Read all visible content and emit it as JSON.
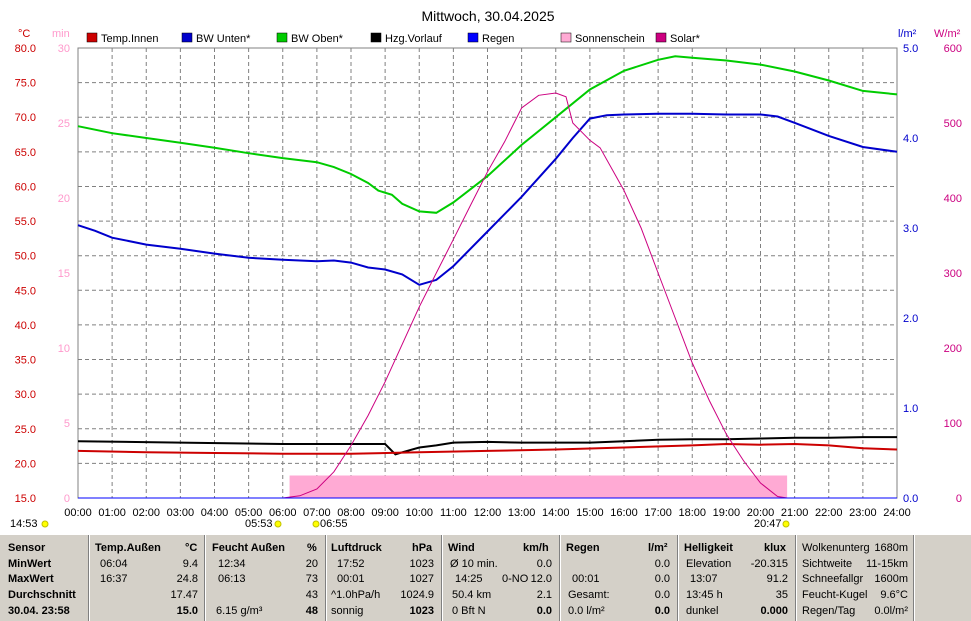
{
  "chart_data": {
    "type": "line",
    "title": "Mittwoch, 30.04.2025",
    "axes": {
      "left_temp": {
        "unit": "°C",
        "min": 15,
        "max": 80,
        "ticks": [
          "80.0",
          "75.0",
          "70.0",
          "65.0",
          "60.0",
          "55.0",
          "50.0",
          "45.0",
          "40.0",
          "35.0",
          "30.0",
          "25.0",
          "20.0",
          "15.0"
        ]
      },
      "left_min": {
        "unit": "min",
        "min": 0,
        "max": 30,
        "ticks": [
          "30",
          "25",
          "20",
          "15",
          "10",
          "5",
          "0"
        ]
      },
      "right_rain": {
        "unit": "l/m²",
        "min": 0,
        "max": 5,
        "ticks": [
          "5.0",
          "4.0",
          "3.0",
          "2.0",
          "1.0",
          "0.0"
        ]
      },
      "right_solar": {
        "unit": "W/m²",
        "min": 0,
        "max": 600,
        "ticks": [
          "600",
          "500",
          "400",
          "300",
          "200",
          "100",
          "0"
        ]
      }
    },
    "x_ticks": [
      "00:00",
      "01:00",
      "02:00",
      "03:00",
      "04:00",
      "05:00",
      "06:00",
      "07:00",
      "08:00",
      "09:00",
      "10:00",
      "11:00",
      "12:00",
      "13:00",
      "14:00",
      "15:00",
      "16:00",
      "17:00",
      "18:00",
      "19:00",
      "20:00",
      "21:00",
      "22:00",
      "23:00",
      "24:00"
    ],
    "grid": true,
    "legend": [
      {
        "label": "Temp.Innen",
        "color": "#cc0000"
      },
      {
        "label": "BW Unten*",
        "color": "#0000cc"
      },
      {
        "label": "BW Oben*",
        "color": "#00cc00"
      },
      {
        "label": "Hzg.Vorlauf",
        "color": "#000000"
      },
      {
        "label": "Regen",
        "color": "#0000ff"
      },
      {
        "label": "Sonnenschein",
        "color": "#ffaad4"
      },
      {
        "label": "Solar*",
        "color": "#cc0080"
      }
    ],
    "series": [
      {
        "name": "BW Oben*",
        "axis": "left_temp",
        "color": "#00cc00",
        "points": [
          [
            0,
            68.7
          ],
          [
            1,
            67.7
          ],
          [
            2,
            67.0
          ],
          [
            3,
            66.3
          ],
          [
            4,
            65.6
          ],
          [
            5,
            64.8
          ],
          [
            6,
            64.1
          ],
          [
            7,
            63.5
          ],
          [
            7.5,
            62.8
          ],
          [
            8,
            61.8
          ],
          [
            8.5,
            60.5
          ],
          [
            8.8,
            59.4
          ],
          [
            9.2,
            58.8
          ],
          [
            9.5,
            57.5
          ],
          [
            10,
            56.4
          ],
          [
            10.5,
            56.2
          ],
          [
            11,
            57.7
          ],
          [
            12,
            61.5
          ],
          [
            13,
            66.0
          ],
          [
            14,
            70.0
          ],
          [
            15,
            74.0
          ],
          [
            16,
            76.7
          ],
          [
            17,
            78.3
          ],
          [
            17.5,
            78.8
          ],
          [
            18,
            78.6
          ],
          [
            19,
            78.2
          ],
          [
            20,
            77.6
          ],
          [
            21,
            76.6
          ],
          [
            22,
            75.3
          ],
          [
            23,
            73.8
          ],
          [
            24,
            73.3
          ]
        ]
      },
      {
        "name": "BW Unten*",
        "axis": "left_temp",
        "color": "#0000cc",
        "points": [
          [
            0,
            54.4
          ],
          [
            0.5,
            53.6
          ],
          [
            1,
            52.6
          ],
          [
            2,
            51.6
          ],
          [
            3,
            51.0
          ],
          [
            4,
            50.3
          ],
          [
            5,
            49.7
          ],
          [
            6,
            49.4
          ],
          [
            7,
            49.2
          ],
          [
            7.5,
            49.3
          ],
          [
            8,
            49.0
          ],
          [
            8.5,
            48.3
          ],
          [
            9,
            48.0
          ],
          [
            9.5,
            47.3
          ],
          [
            10,
            45.8
          ],
          [
            10.5,
            46.5
          ],
          [
            11,
            48.5
          ],
          [
            12,
            53.5
          ],
          [
            13,
            58.5
          ],
          [
            14,
            64.0
          ],
          [
            14.5,
            67.0
          ],
          [
            15,
            69.8
          ],
          [
            15.5,
            70.3
          ],
          [
            16,
            70.4
          ],
          [
            17,
            70.5
          ],
          [
            18,
            70.5
          ],
          [
            19,
            70.4
          ],
          [
            20,
            70.4
          ],
          [
            20.5,
            70.1
          ],
          [
            21,
            69.2
          ],
          [
            22,
            67.3
          ],
          [
            23,
            65.7
          ],
          [
            24,
            65.0
          ]
        ]
      },
      {
        "name": "Hzg.Vorlauf",
        "axis": "left_temp",
        "color": "#000000",
        "points": [
          [
            0,
            23.2
          ],
          [
            3,
            23.0
          ],
          [
            6,
            22.8
          ],
          [
            9,
            22.8
          ],
          [
            9.3,
            21.3
          ],
          [
            9.5,
            21.6
          ],
          [
            10,
            22.3
          ],
          [
            10.5,
            22.6
          ],
          [
            11,
            23.0
          ],
          [
            12,
            23.1
          ],
          [
            13,
            23.0
          ],
          [
            14,
            23.0
          ],
          [
            15,
            23.0
          ],
          [
            16,
            23.2
          ],
          [
            17,
            23.4
          ],
          [
            18,
            23.5
          ],
          [
            19,
            23.5
          ],
          [
            20,
            23.6
          ],
          [
            21,
            23.7
          ],
          [
            22,
            23.7
          ],
          [
            23,
            23.8
          ],
          [
            24,
            23.8
          ]
        ]
      },
      {
        "name": "Temp.Innen",
        "axis": "left_temp",
        "color": "#cc0000",
        "points": [
          [
            0,
            21.8
          ],
          [
            2,
            21.6
          ],
          [
            4,
            21.5
          ],
          [
            6,
            21.4
          ],
          [
            8,
            21.4
          ],
          [
            10,
            21.6
          ],
          [
            12,
            21.8
          ],
          [
            14,
            22.0
          ],
          [
            16,
            22.3
          ],
          [
            18,
            22.6
          ],
          [
            19,
            22.8
          ],
          [
            20,
            22.7
          ],
          [
            21,
            22.8
          ],
          [
            22,
            22.6
          ],
          [
            23,
            22.2
          ],
          [
            24,
            22.0
          ]
        ]
      },
      {
        "name": "Solar*",
        "axis": "right_solar",
        "color": "#cc0080",
        "points": [
          [
            6.0,
            0
          ],
          [
            6.5,
            3
          ],
          [
            7.0,
            12
          ],
          [
            7.5,
            35
          ],
          [
            8,
            70
          ],
          [
            8.5,
            110
          ],
          [
            9,
            155
          ],
          [
            9.5,
            205
          ],
          [
            10,
            255
          ],
          [
            10.5,
            300
          ],
          [
            11,
            345
          ],
          [
            11.5,
            390
          ],
          [
            12,
            435
          ],
          [
            12.5,
            475
          ],
          [
            13,
            520
          ],
          [
            13.5,
            537
          ],
          [
            14,
            540
          ],
          [
            14.3,
            535
          ],
          [
            14.5,
            500
          ],
          [
            15,
            477
          ],
          [
            15.3,
            467
          ],
          [
            16,
            410
          ],
          [
            16.5,
            360
          ],
          [
            17,
            300
          ],
          [
            17.5,
            240
          ],
          [
            18,
            180
          ],
          [
            18.5,
            130
          ],
          [
            19,
            85
          ],
          [
            19.5,
            50
          ],
          [
            20,
            20
          ],
          [
            20.5,
            2
          ],
          [
            20.78,
            0
          ]
        ]
      }
    ],
    "sunshine": {
      "axis": "left_min",
      "start": 6.2,
      "end": 20.78,
      "value": 1.5
    },
    "rain_total_l_m2": 0.0,
    "markers_text": [
      {
        "label": "14:53"
      },
      {
        "label": "05:53"
      },
      {
        "label": "06:55"
      },
      {
        "label": "20:47"
      }
    ]
  },
  "panel": {
    "sensor": {
      "header": "Sensor",
      "minwert": "MinWert",
      "maxwert": "MaxWert",
      "durchschnitt": "Durchschnitt",
      "date": "30.04. 23:58"
    },
    "temp": {
      "header": "Temp.Außen",
      "unit": "°C",
      "min_time": "06:04",
      "min_val": "9.4",
      "max_time": "16:37",
      "max_val": "24.8",
      "avg": "17.47",
      "cur": "15.0"
    },
    "feucht": {
      "header": "Feucht Außen",
      "unit": "%",
      "min_time": "12:34",
      "min_val": "20",
      "max_time": "06:13",
      "max_val": "73",
      "avg": "43",
      "abs": "6.15 g/m³",
      "cur": "48"
    },
    "druck": {
      "header": "Luftdruck",
      "unit": "hPa",
      "min_time": "17:52",
      "min_val": "1023",
      "max_time": "00:01",
      "max_val": "1027",
      "trend": "^1.0hPa/h",
      "avg": "1024.9",
      "state": "sonnig",
      "cur": "1023"
    },
    "wind": {
      "header": "Wind",
      "unit": "km/h",
      "avg_label": "Ø 10 min.",
      "avg_val": "0.0",
      "max_time": "14:25",
      "max_dir": "0-NO",
      "max_val": "12.0",
      "dist": "50.4 km",
      "dist_val": "2.1",
      "bft": "0 Bft N",
      "cur": "0.0"
    },
    "regen": {
      "header": "Regen",
      "unit": "l/m²",
      "val1": "0.0",
      "max_time": "00:01",
      "max_val": "0.0",
      "gesamt_label": "Gesamt:",
      "gesamt_val": "0.0",
      "today": "0.0 l/m²",
      "cur": "0.0"
    },
    "hell": {
      "header": "Helligkeit",
      "unit": "klux",
      "elev_label": "Elevation",
      "elev_val": "-20.315",
      "max_time": "13:07",
      "max_val": "91.2",
      "sun_time": "13:45 h",
      "sun_val": "35",
      "state": "dunkel",
      "cur": "0.000"
    },
    "wolken": {
      "l1": "Wolkenunterg",
      "v1": "1680m",
      "l2": "Sichtweite",
      "v2": "11-15km",
      "l3": "Schneefallgr",
      "v3": "1600m",
      "l4": "Feucht-Kugel",
      "v4": "9.6°C",
      "l5": "Regen/Tag",
      "v5": "0.0l/m²"
    }
  }
}
